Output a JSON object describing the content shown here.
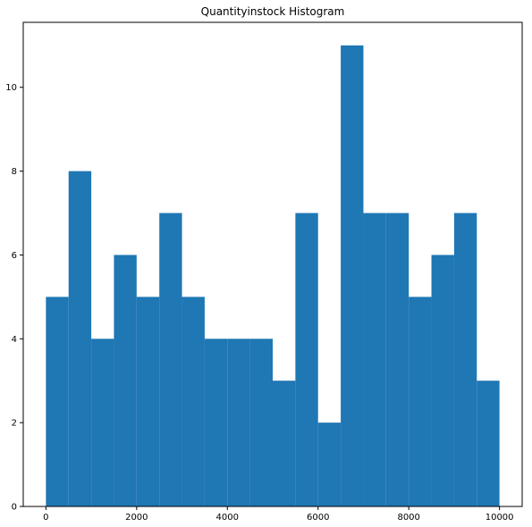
{
  "chart_data": {
    "type": "bar",
    "title": "Quantityinstock Histogram",
    "xlabel": "",
    "ylabel": "",
    "bin_edges": [
      0,
      500,
      1000,
      1500,
      2000,
      2500,
      3000,
      3500,
      4000,
      4500,
      5000,
      5500,
      6000,
      6500,
      7000,
      7500,
      8000,
      8500,
      9000,
      9500,
      10000
    ],
    "values": [
      5,
      8,
      4,
      6,
      5,
      7,
      5,
      4,
      4,
      4,
      3,
      7,
      2,
      11,
      7,
      7,
      5,
      6,
      7,
      3
    ],
    "xlim": [
      -500,
      10500
    ],
    "ylim": [
      0,
      11.55
    ],
    "xticks": [
      0,
      2000,
      4000,
      6000,
      8000,
      10000
    ],
    "xtick_labels": [
      "0",
      "2000",
      "4000",
      "6000",
      "8000",
      "10000"
    ],
    "yticks": [
      0,
      2,
      4,
      6,
      8,
      10
    ],
    "ytick_labels": [
      "0",
      "2",
      "4",
      "6",
      "8",
      "10"
    ],
    "bar_color": "#1f77b4",
    "grid": false
  }
}
